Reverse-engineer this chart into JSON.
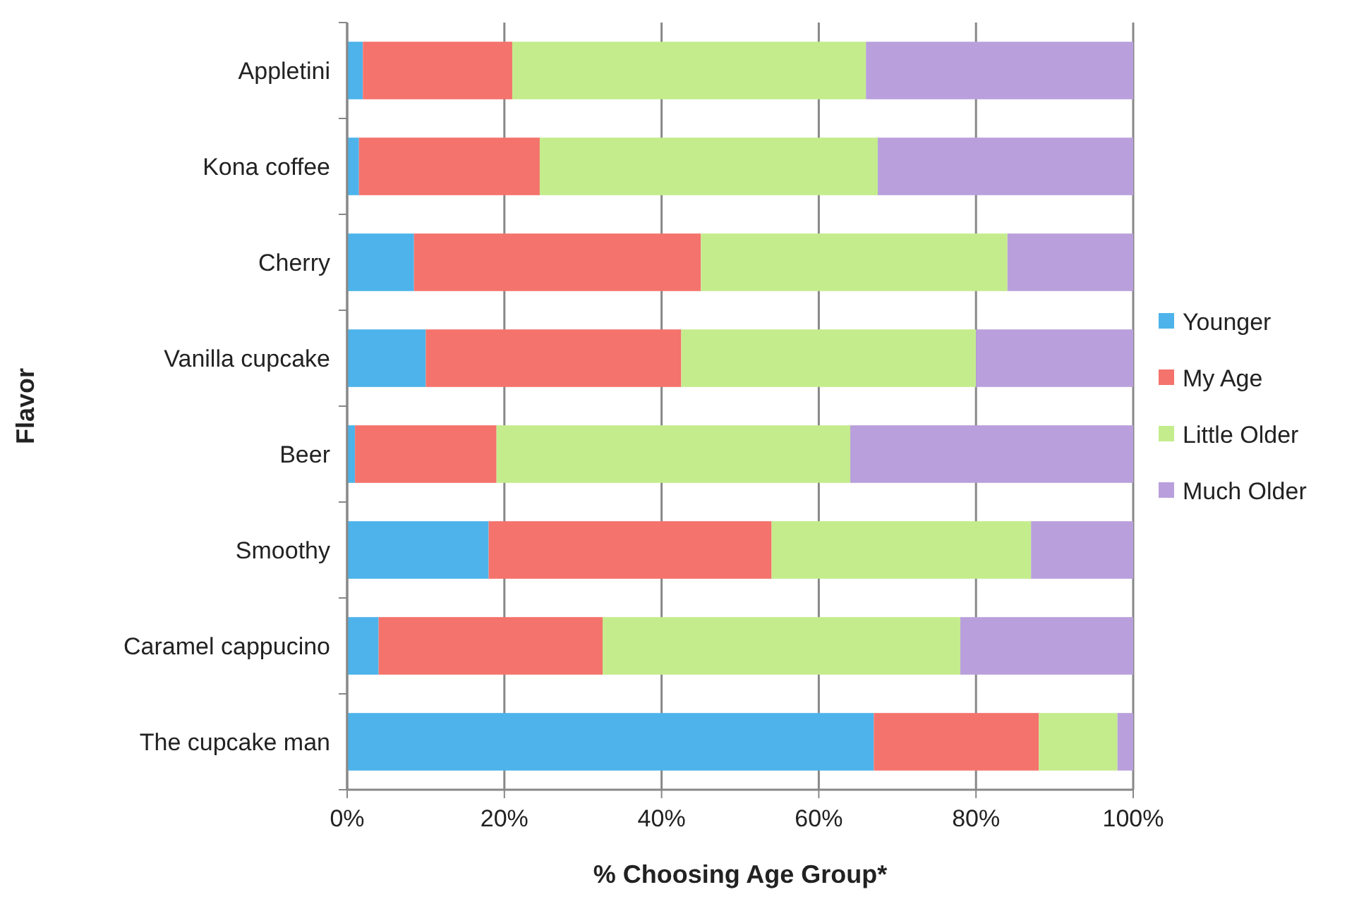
{
  "chart_data": {
    "type": "bar",
    "orientation": "horizontal",
    "stacked": true,
    "xlabel": "% Choosing Age Group*",
    "ylabel": "Flavor",
    "categories": [
      "Appletini",
      "Kona coffee",
      "Cherry",
      "Vanilla cupcake",
      "Beer",
      "Smoothy",
      "Caramel cappucino",
      "The cupcake man"
    ],
    "series": [
      {
        "name": "Younger",
        "color": "#4db3ea",
        "values": [
          2,
          1.5,
          8.5,
          10,
          1,
          18,
          4,
          67
        ]
      },
      {
        "name": "My Age",
        "color": "#f4736c",
        "values": [
          19,
          23,
          36.5,
          32.5,
          18,
          36,
          28.5,
          21
        ]
      },
      {
        "name": "Little Older",
        "color": "#c4ec8c",
        "values": [
          45,
          43,
          39,
          37.5,
          45,
          33,
          45.5,
          10
        ]
      },
      {
        "name": "Much Older",
        "color": "#b9a0dc",
        "values": [
          34,
          32.5,
          16,
          20,
          36,
          13,
          22,
          2
        ]
      }
    ],
    "xlim": [
      0,
      100
    ],
    "xticks": [
      {
        "value": 0,
        "label": "0%"
      },
      {
        "value": 20,
        "label": "20%"
      },
      {
        "value": 40,
        "label": "40%"
      },
      {
        "value": 60,
        "label": "60%"
      },
      {
        "value": 80,
        "label": "80%"
      },
      {
        "value": 100,
        "label": "100%"
      }
    ],
    "grid": "x",
    "legend": "right"
  }
}
